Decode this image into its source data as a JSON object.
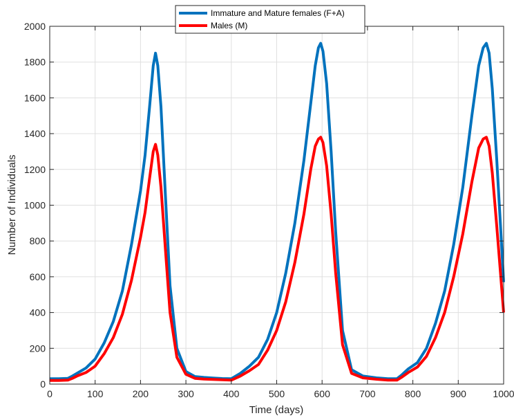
{
  "chart_data": {
    "type": "line",
    "xlabel": "Time (days)",
    "ylabel": "Number of Individuals",
    "xlim": [
      0,
      1000
    ],
    "ylim": [
      0,
      2000
    ],
    "xticks": [
      0,
      100,
      200,
      300,
      400,
      500,
      600,
      700,
      800,
      900,
      1000
    ],
    "yticks": [
      0,
      200,
      400,
      600,
      800,
      1000,
      1200,
      1400,
      1600,
      1800,
      2000
    ],
    "grid": true,
    "legend_position": "top-center",
    "series": [
      {
        "name": "Immature and Mature females (F+A)",
        "color": "#0072BD",
        "x": [
          0,
          20,
          40,
          50,
          60,
          80,
          100,
          120,
          140,
          160,
          180,
          200,
          210,
          220,
          228,
          233,
          238,
          245,
          255,
          265,
          280,
          300,
          320,
          340,
          360,
          380,
          400,
          420,
          440,
          460,
          480,
          500,
          520,
          540,
          560,
          575,
          585,
          592,
          597,
          602,
          610,
          620,
          630,
          645,
          665,
          690,
          720,
          745,
          765,
          775,
          790,
          810,
          830,
          850,
          870,
          890,
          910,
          930,
          945,
          955,
          962,
          968,
          975,
          985,
          995,
          1000
        ],
        "y": [
          30,
          30,
          32,
          45,
          60,
          90,
          140,
          230,
          350,
          520,
          780,
          1080,
          1280,
          1550,
          1780,
          1850,
          1780,
          1550,
          1050,
          550,
          200,
          70,
          42,
          37,
          34,
          31,
          30,
          60,
          100,
          150,
          250,
          400,
          620,
          900,
          1250,
          1570,
          1780,
          1880,
          1905,
          1860,
          1680,
          1300,
          850,
          300,
          80,
          45,
          35,
          30,
          30,
          50,
          85,
          120,
          200,
          340,
          520,
          780,
          1100,
          1500,
          1780,
          1880,
          1905,
          1850,
          1650,
          1250,
          800,
          570
        ]
      },
      {
        "name": "Males (M)",
        "color": "#FF0000",
        "x": [
          0,
          20,
          40,
          50,
          60,
          80,
          100,
          120,
          140,
          160,
          180,
          200,
          210,
          220,
          228,
          233,
          238,
          245,
          255,
          265,
          280,
          300,
          320,
          340,
          360,
          380,
          400,
          420,
          440,
          460,
          480,
          500,
          520,
          540,
          560,
          575,
          585,
          592,
          597,
          602,
          610,
          620,
          630,
          645,
          665,
          690,
          720,
          745,
          765,
          775,
          790,
          810,
          830,
          850,
          870,
          890,
          910,
          930,
          945,
          955,
          962,
          968,
          975,
          985,
          995,
          1000
        ],
        "y": [
          20,
          20,
          22,
          32,
          45,
          65,
          100,
          170,
          260,
          390,
          580,
          820,
          960,
          1150,
          1300,
          1340,
          1280,
          1100,
          750,
          400,
          150,
          55,
          32,
          28,
          26,
          24,
          22,
          45,
          75,
          110,
          190,
          300,
          460,
          680,
          950,
          1200,
          1330,
          1370,
          1380,
          1350,
          1220,
          950,
          620,
          220,
          60,
          35,
          27,
          22,
          22,
          38,
          65,
          95,
          155,
          260,
          400,
          600,
          840,
          1130,
          1320,
          1370,
          1380,
          1330,
          1180,
          880,
          560,
          400
        ]
      }
    ]
  }
}
